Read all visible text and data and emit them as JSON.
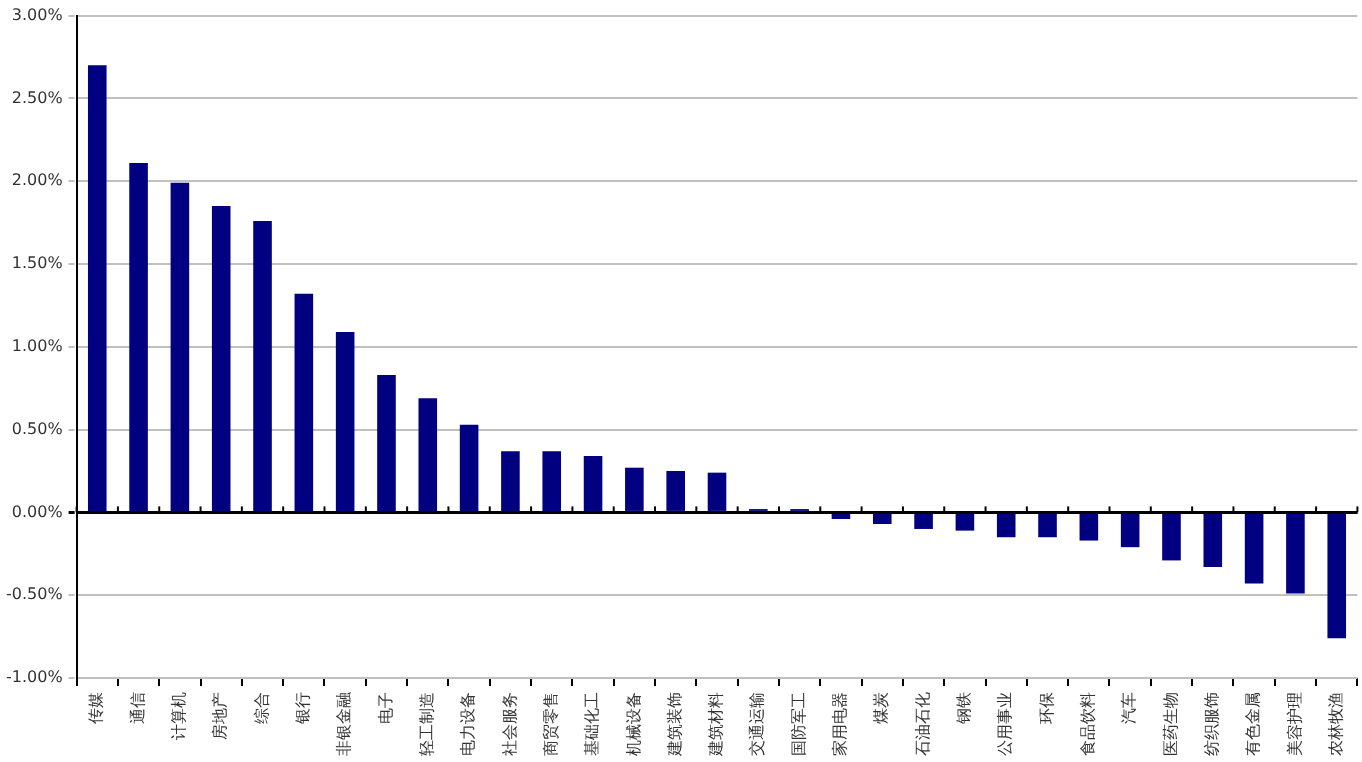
{
  "chart_data": {
    "type": "bar",
    "categories": [
      "传媒",
      "通信",
      "计算机",
      "房地产",
      "综合",
      "银行",
      "非银金融",
      "电子",
      "轻工制造",
      "电力设备",
      "社会服务",
      "商贸零售",
      "基础化工",
      "机械设备",
      "建筑装饰",
      "建筑材料",
      "交通运输",
      "国防军工",
      "家用电器",
      "煤炭",
      "石油石化",
      "钢铁",
      "公用事业",
      "环保",
      "食品饮料",
      "汽车",
      "医药生物",
      "纺织服饰",
      "有色金属",
      "美容护理",
      "农林牧渔"
    ],
    "values": [
      2.7,
      2.11,
      1.99,
      1.85,
      1.76,
      1.32,
      1.09,
      0.83,
      0.69,
      0.53,
      0.37,
      0.37,
      0.34,
      0.27,
      0.25,
      0.24,
      0.02,
      0.02,
      -0.04,
      -0.07,
      -0.1,
      -0.11,
      -0.15,
      -0.15,
      -0.17,
      -0.21,
      -0.29,
      -0.33,
      -0.43,
      -0.49,
      -0.76
    ],
    "color": "#000080",
    "ylim": [
      -1,
      3
    ],
    "yticks": [
      {
        "value": -1,
        "label": "-1.00%"
      },
      {
        "value": -0.5,
        "label": "-0.50%"
      },
      {
        "value": 0,
        "label": "0.00%"
      },
      {
        "value": 0.5,
        "label": "0.50%"
      },
      {
        "value": 1,
        "label": "1.00%"
      },
      {
        "value": 1.5,
        "label": "1.50%"
      },
      {
        "value": 2,
        "label": "2.00%"
      },
      {
        "value": 2.5,
        "label": "2.50%"
      },
      {
        "value": 3,
        "label": "3.00%"
      }
    ],
    "grid": "y"
  }
}
